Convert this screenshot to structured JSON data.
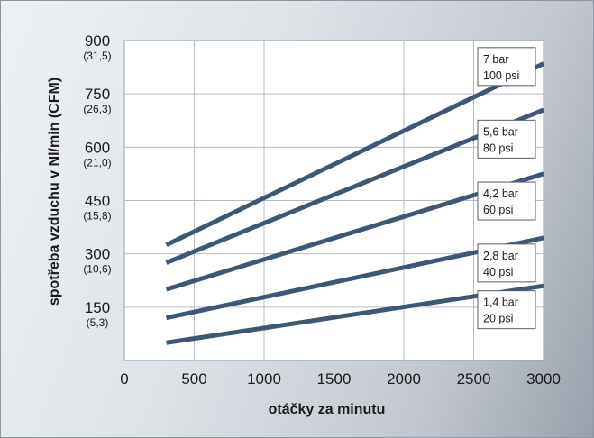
{
  "chart_data": {
    "type": "line",
    "xlabel": "otáčky za minutu",
    "ylabel": "spotřeba vzduchu v Nl/min (CFM)",
    "xlim": [
      0,
      3000
    ],
    "ylim": [
      0,
      900
    ],
    "grid": true,
    "x_ticks": [
      0,
      500,
      1000,
      1500,
      2000,
      2500,
      3000
    ],
    "y_ticks": [
      {
        "value": 150,
        "label": "150",
        "sub": "(5,3)"
      },
      {
        "value": 300,
        "label": "300",
        "sub": "(10,6)"
      },
      {
        "value": 450,
        "label": "450",
        "sub": "(15,8)"
      },
      {
        "value": 600,
        "label": "600",
        "sub": "(21,0)"
      },
      {
        "value": 750,
        "label": "750",
        "sub": "(26,3)"
      },
      {
        "value": 900,
        "label": "900",
        "sub": "(31,5)"
      }
    ],
    "series": [
      {
        "name": "1,4 bar",
        "name2": "20 psi",
        "x": [
          300,
          3000
        ],
        "y": [
          50,
          210
        ]
      },
      {
        "name": "2,8 bar",
        "name2": "40 psi",
        "x": [
          300,
          3000
        ],
        "y": [
          120,
          345
        ]
      },
      {
        "name": "4,2 bar",
        "name2": "60 psi",
        "x": [
          300,
          3000
        ],
        "y": [
          200,
          525
        ]
      },
      {
        "name": "5,6 bar",
        "name2": "80 psi",
        "x": [
          300,
          3000
        ],
        "y": [
          275,
          705
        ]
      },
      {
        "name": "7 bar",
        "name2": "100 psi",
        "x": [
          300,
          3000
        ],
        "y": [
          325,
          835
        ]
      }
    ],
    "line_color": "#3d5774"
  }
}
